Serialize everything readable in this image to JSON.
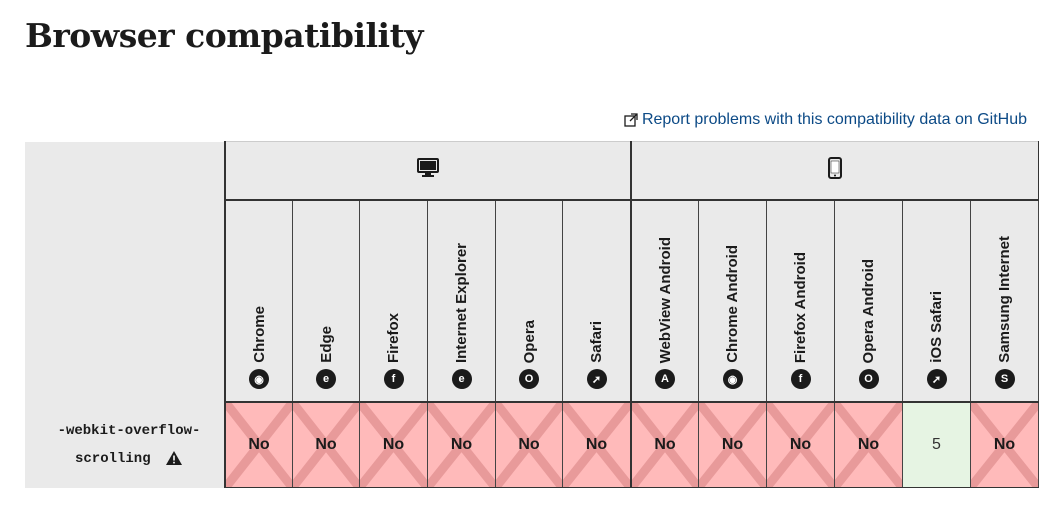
{
  "page": {
    "title": "Browser compatibility",
    "report_link": "Report problems with this compatibility data on GitHub"
  },
  "platforms": {
    "desktop_icon": "desktop-icon",
    "mobile_icon": "mobile-icon"
  },
  "browsers": [
    {
      "name": "Chrome",
      "icon": "chrome-icon",
      "glyph": "◉"
    },
    {
      "name": "Edge",
      "icon": "edge-icon",
      "glyph": "e"
    },
    {
      "name": "Firefox",
      "icon": "firefox-icon",
      "glyph": "f"
    },
    {
      "name": "Internet Explorer",
      "icon": "internet-explorer-icon",
      "glyph": "e"
    },
    {
      "name": "Opera",
      "icon": "opera-icon",
      "glyph": "O"
    },
    {
      "name": "Safari",
      "icon": "safari-icon",
      "glyph": "➚"
    },
    {
      "name": "WebView Android",
      "icon": "android-icon",
      "glyph": "A"
    },
    {
      "name": "Chrome Android",
      "icon": "chrome-icon",
      "glyph": "◉"
    },
    {
      "name": "Firefox Android",
      "icon": "firefox-icon",
      "glyph": "f"
    },
    {
      "name": "Opera Android",
      "icon": "opera-icon",
      "glyph": "O"
    },
    {
      "name": "iOS Safari",
      "icon": "safari-icon",
      "glyph": "➚"
    },
    {
      "name": "Samsung Internet",
      "icon": "samsung-internet-icon",
      "glyph": "S"
    }
  ],
  "feature": {
    "line1": "-webkit-overflow-",
    "line2": "scrolling",
    "support": [
      "No",
      "No",
      "No",
      "No",
      "No",
      "No",
      "No",
      "No",
      "No",
      "No",
      "5",
      "No"
    ]
  },
  "colors": {
    "no": "#ffbaba",
    "yes": "#e6f4e3",
    "header_bg": "#eaeaea",
    "link": "#0c4a86"
  }
}
